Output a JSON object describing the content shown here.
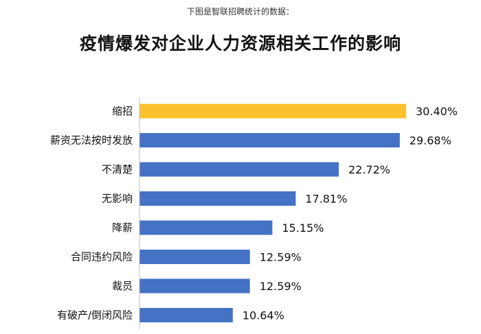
{
  "header": {
    "subtitle": "下图是智联招聘统计的数据：",
    "title": "疫情爆发对企业人力资源相关工作的影响"
  },
  "chart_data": {
    "type": "bar",
    "orientation": "horizontal",
    "title": "疫情爆发对企业人力资源相关工作的影响",
    "subtitle": "下图是智联招聘统计的数据：",
    "categories": [
      "缩招",
      "薪资无法按时发放",
      "不清楚",
      "无影响",
      "降薪",
      "合同违约风险",
      "裁员",
      "有破产/倒闭风险"
    ],
    "values": [
      30.4,
      29.68,
      22.72,
      17.81,
      15.15,
      12.59,
      12.59,
      10.64
    ],
    "value_labels": [
      "30.40%",
      "29.68%",
      "22.72%",
      "17.81%",
      "15.15%",
      "12.59%",
      "12.59%",
      "10.64%"
    ],
    "unit": "%",
    "highlight_index": 0,
    "colors": {
      "highlight": "#FCC12D",
      "bar": "#4472C4"
    },
    "xlim": [
      0,
      30.4
    ],
    "grid": false,
    "legend": "none"
  }
}
